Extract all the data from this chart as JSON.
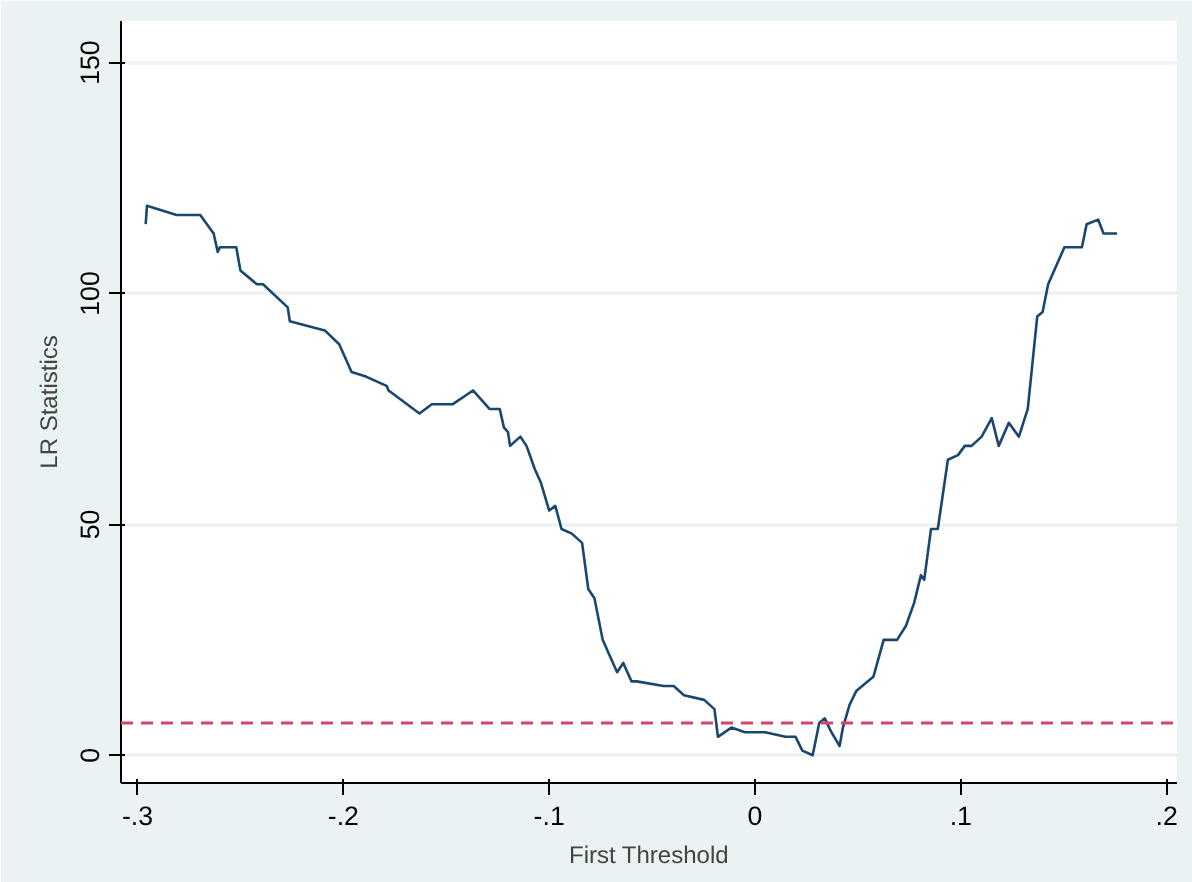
{
  "chart_data": {
    "type": "line",
    "xlabel": "First Threshold",
    "ylabel": "LR Statistics",
    "xlim": [
      -0.308,
      0.205
    ],
    "ylim": [
      -6,
      159
    ],
    "xticks": [
      {
        "value": -0.3,
        "label": "-.3"
      },
      {
        "value": -0.2,
        "label": "-.2"
      },
      {
        "value": -0.1,
        "label": "-.1"
      },
      0,
      {
        "value": 0.1,
        "label": ".1"
      },
      {
        "value": 0.2,
        "label": ".2"
      }
    ],
    "yticks": [
      0,
      50,
      100,
      150
    ],
    "grid": "y",
    "marker": "none",
    "line_style": "solid",
    "series": [
      {
        "color": "#1a476f",
        "x": [
          -0.296,
          -0.2954,
          -0.281,
          -0.2805,
          -0.2695,
          -0.263,
          -0.261,
          -0.26,
          -0.252,
          -0.25,
          -0.242,
          -0.239,
          -0.227,
          -0.226,
          -0.209,
          -0.202,
          -0.196,
          -0.189,
          -0.179,
          -0.178,
          -0.163,
          -0.157,
          -0.154,
          -0.147,
          -0.137,
          -0.129,
          -0.124,
          -0.122,
          -0.12,
          -0.119,
          -0.114,
          -0.111,
          -0.107,
          -0.104,
          -0.1,
          -0.097,
          -0.094,
          -0.089,
          -0.084,
          -0.081,
          -0.078,
          -0.074,
          -0.071,
          -0.067,
          -0.064,
          -0.06,
          -0.0575,
          -0.0444,
          -0.0395,
          -0.0345,
          -0.0247,
          -0.0197,
          -0.018,
          -0.0115,
          -0.0049,
          0.0049,
          0.0148,
          0.0197,
          0.023,
          0.028,
          0.0312,
          0.0339,
          0.0371,
          0.0411,
          0.0427,
          0.046,
          0.0493,
          0.0575,
          0.0625,
          0.069,
          0.0733,
          0.0773,
          0.0806,
          0.0822,
          0.0855,
          0.0888,
          0.0937,
          0.0986,
          0.1019,
          0.1052,
          0.1101,
          0.115,
          0.1184,
          0.1233,
          0.1282,
          0.1325,
          0.1371,
          0.1397,
          0.1424,
          0.1503,
          0.1588,
          0.1611,
          0.1667,
          0.1693,
          0.1759
        ],
        "values": [
          115,
          119,
          117,
          117,
          117,
          113,
          109,
          110,
          110,
          105,
          102,
          102,
          97,
          94,
          92,
          89,
          83,
          82,
          80,
          79,
          74,
          76,
          76,
          76,
          79,
          75,
          75,
          71,
          70,
          67,
          69,
          67,
          62,
          59,
          53,
          54,
          49,
          48,
          46,
          36,
          34,
          25,
          22,
          18,
          20,
          16,
          16,
          15,
          15,
          13,
          12,
          10,
          4,
          6,
          5,
          5,
          4,
          4,
          1,
          0,
          7,
          8,
          5,
          2,
          6,
          11,
          14,
          17,
          25,
          25,
          28,
          33,
          39,
          38,
          49,
          49,
          64,
          65,
          67,
          67,
          69,
          73,
          67,
          72,
          69,
          75,
          95,
          96,
          102,
          110,
          110,
          115,
          116,
          113,
          113
        ]
      }
    ],
    "ref_lines": [
      {
        "axis": "y",
        "value": 7,
        "color": "#d6446a",
        "line_style": "dashed"
      }
    ]
  }
}
